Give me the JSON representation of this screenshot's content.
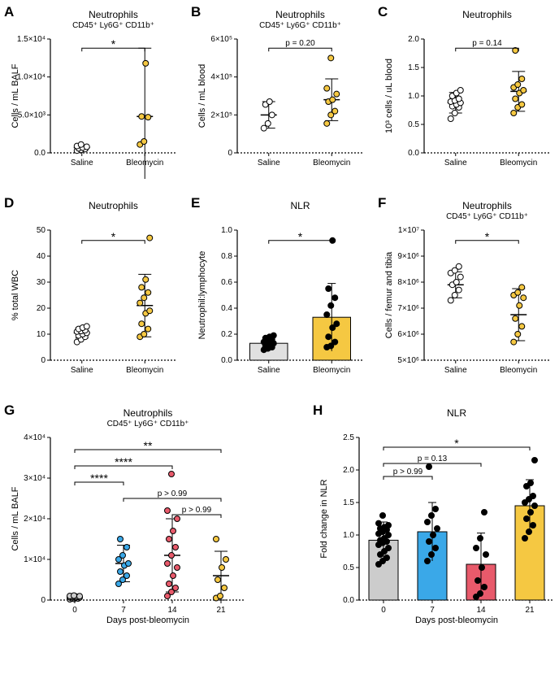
{
  "colors": {
    "saline_fill": "#ffffff",
    "saline_stroke": "#000000",
    "bleo_fill": "#f5c842",
    "bleo_stroke": "#000000",
    "day0_fill": "#cccccc",
    "day7_fill": "#3aa8e8",
    "day14_fill": "#e85a6b",
    "day21_fill": "#f5c842",
    "bar_saline": "#e0e0e0",
    "bar_bleo": "#f5c842",
    "bar_d0": "#cccccc",
    "bar_d7": "#3aa8e8",
    "bar_d14": "#e85a6b",
    "bar_d21": "#f5c842",
    "point_black": "#000000",
    "bg": "#ffffff"
  },
  "panelA": {
    "letter": "A",
    "title": "Neutrophils",
    "subtitle": "CD45⁺ Ly6G⁺ CD11b⁺",
    "ylabel": "Cells / mL BALF",
    "categories": [
      "Saline",
      "Bleomycin"
    ],
    "ylim": [
      0,
      15000
    ],
    "yticks": [
      0,
      5000,
      10000,
      15000
    ],
    "ytick_labels": [
      "0.0",
      "5.0×10³",
      "1.0×10⁴",
      "1.5×10⁴"
    ],
    "significance": "*",
    "data": {
      "Saline": [
        300,
        400,
        500,
        600,
        700,
        800,
        900,
        1100
      ],
      "Bleomycin": [
        1100,
        1500,
        4700,
        4800,
        11800
      ]
    },
    "err": {
      "Saline": [
        700,
        300
      ],
      "Bleomycin": [
        4800,
        9000
      ]
    }
  },
  "panelB": {
    "letter": "B",
    "title": "Neutrophils",
    "subtitle": "CD45⁺ Ly6G⁺ CD11b⁺",
    "ylabel": "Cells / mL blood",
    "categories": [
      "Saline",
      "Bleomycin"
    ],
    "ylim": [
      0,
      600000
    ],
    "yticks": [
      0,
      200000,
      400000,
      600000
    ],
    "ytick_labels": [
      "0",
      "2×10⁵",
      "4×10⁵",
      "6×10⁵"
    ],
    "annot": "p = 0.20",
    "data": {
      "Saline": [
        130000,
        155000,
        200000,
        255000,
        270000
      ],
      "Bleomycin": [
        155000,
        200000,
        220000,
        270000,
        280000,
        310000,
        340000,
        500000
      ]
    },
    "err": {
      "Saline": [
        200000,
        70000
      ],
      "Bleomycin": [
        280000,
        110000
      ]
    }
  },
  "panelC": {
    "letter": "C",
    "title": "Neutrophils",
    "subtitle": "",
    "ylabel": "10³ cells / uL blood",
    "categories": [
      "Saline",
      "Bleomycin"
    ],
    "ylim": [
      0,
      2.0
    ],
    "yticks": [
      0,
      0.5,
      1.0,
      1.5,
      2.0
    ],
    "ytick_labels": [
      "0.0",
      "0.5",
      "1.0",
      "1.5",
      "2.0"
    ],
    "annot": "p = 0.14",
    "data": {
      "Saline": [
        0.6,
        0.7,
        0.8,
        0.82,
        0.85,
        0.88,
        0.9,
        0.92,
        0.95,
        1.0,
        1.05,
        1.1
      ],
      "Bleomycin": [
        0.7,
        0.8,
        0.85,
        0.95,
        1.05,
        1.1,
        1.15,
        1.2,
        1.3,
        1.8
      ]
    },
    "err": {
      "Saline": [
        0.88,
        0.18
      ],
      "Bleomycin": [
        1.08,
        0.35
      ]
    }
  },
  "panelD": {
    "letter": "D",
    "title": "Neutrophils",
    "subtitle": "",
    "ylabel": "% total WBC",
    "categories": [
      "Saline",
      "Bleomycin"
    ],
    "ylim": [
      0,
      50
    ],
    "yticks": [
      0,
      10,
      20,
      30,
      40,
      50
    ],
    "ytick_labels": [
      "0",
      "10",
      "20",
      "30",
      "40",
      "50"
    ],
    "significance": "*",
    "data": {
      "Saline": [
        7,
        8,
        9,
        9.5,
        10,
        10.5,
        11,
        11.2,
        11.5,
        12,
        12.5,
        13
      ],
      "Bleomycin": [
        9,
        10,
        12,
        14,
        18,
        19,
        22,
        24,
        26,
        28,
        31,
        47
      ]
    },
    "err": {
      "Saline": [
        10.5,
        2
      ],
      "Bleomycin": [
        21,
        12
      ]
    }
  },
  "panelE": {
    "letter": "E",
    "title": "NLR",
    "subtitle": "",
    "ylabel": "Neutrophil:lymphocyte",
    "categories": [
      "Saline",
      "Bleomycin"
    ],
    "ylim": [
      0,
      1.0
    ],
    "yticks": [
      0,
      0.2,
      0.4,
      0.6,
      0.8,
      1.0
    ],
    "ytick_labels": [
      "0.0",
      "0.2",
      "0.4",
      "0.6",
      "0.8",
      "1.0"
    ],
    "significance": "*",
    "bar": true,
    "bar_colors": [
      "#e0e0e0",
      "#f5c842"
    ],
    "bar_heights": [
      0.13,
      0.33
    ],
    "bar_err": [
      0.04,
      0.26
    ],
    "data": {
      "Saline": [
        0.08,
        0.09,
        0.1,
        0.11,
        0.12,
        0.13,
        0.14,
        0.15,
        0.16,
        0.17,
        0.18,
        0.19
      ],
      "Bleomycin": [
        0.1,
        0.11,
        0.14,
        0.18,
        0.25,
        0.28,
        0.35,
        0.42,
        0.48,
        0.55,
        0.92
      ]
    }
  },
  "panelF": {
    "letter": "F",
    "title": "Neutrophils",
    "subtitle": "CD45⁺ Ly6G⁺ CD11b⁺",
    "ylabel": "Cells / femur and tibia",
    "categories": [
      "Saline",
      "Bleomycin"
    ],
    "ylim": [
      5000000,
      10000000
    ],
    "yticks": [
      5000000,
      6000000,
      7000000,
      8000000,
      9000000,
      10000000
    ],
    "ytick_labels": [
      "5×10⁶",
      "6×10⁶",
      "7×10⁶",
      "8×10⁶",
      "9×10⁶",
      "1×10⁷"
    ],
    "significance": "*",
    "data": {
      "Saline": [
        7300000,
        7500000,
        7700000,
        7900000,
        8000000,
        8200000,
        8350000,
        8450000,
        8600000
      ],
      "Bleomycin": [
        5700000,
        6000000,
        6300000,
        6600000,
        7100000,
        7400000,
        7500000,
        7600000,
        7800000
      ]
    },
    "err": {
      "Saline": [
        7900000,
        500000
      ],
      "Bleomycin": [
        6750000,
        1000000
      ]
    }
  },
  "panelG": {
    "letter": "G",
    "title": "Neutrophils",
    "subtitle": "CD45⁺ Ly6G⁺ CD11b⁺",
    "ylabel": "Cells / mL BALF",
    "xlabel": "Days post-bleomycin",
    "categories": [
      "0",
      "7",
      "14",
      "21"
    ],
    "colors": [
      "#cccccc",
      "#3aa8e8",
      "#e85a6b",
      "#f5c842"
    ],
    "ylim": [
      0,
      40000
    ],
    "yticks": [
      0,
      10000,
      20000,
      30000,
      40000
    ],
    "ytick_labels": [
      "0",
      "1×10⁴",
      "2×10⁴",
      "3×10⁴",
      "4×10⁴"
    ],
    "annots": [
      {
        "from": 0,
        "to": 3,
        "label": "**",
        "y": 37000
      },
      {
        "from": 0,
        "to": 2,
        "label": "****",
        "y": 33000
      },
      {
        "from": 0,
        "to": 1,
        "label": "****",
        "y": 29000
      },
      {
        "from": 1,
        "to": 3,
        "label": "p > 0.99",
        "y": 25000
      },
      {
        "from": 2,
        "to": 3,
        "label": "p > 0.99",
        "y": 21000
      }
    ],
    "data": {
      "0": [
        200,
        300,
        400,
        500,
        600,
        650,
        700,
        750,
        800,
        850,
        900,
        950,
        1000,
        1100
      ],
      "7": [
        4000,
        5000,
        6000,
        7000,
        8500,
        9000,
        10000,
        11000,
        13000,
        15000
      ],
      "14": [
        1000,
        2000,
        3000,
        4000,
        6000,
        8000,
        9000,
        11000,
        13000,
        15000,
        17000,
        20000,
        22000,
        31000
      ],
      "21": [
        500,
        1000,
        3000,
        5000,
        8000,
        10000,
        15000
      ]
    },
    "err": {
      "0": [
        700,
        400
      ],
      "7": [
        9000,
        4500
      ],
      "14": [
        11000,
        9000
      ],
      "21": [
        6000,
        6000
      ]
    }
  },
  "panelH": {
    "letter": "H",
    "title": "NLR",
    "subtitle": "",
    "ylabel": "Fold change in NLR",
    "xlabel": "Days post-bleomycin",
    "categories": [
      "0",
      "7",
      "14",
      "21"
    ],
    "colors": [
      "#cccccc",
      "#3aa8e8",
      "#e85a6b",
      "#f5c842"
    ],
    "ylim": [
      0,
      2.5
    ],
    "yticks": [
      0,
      0.5,
      1.0,
      1.5,
      2.0,
      2.5
    ],
    "ytick_labels": [
      "0.0",
      "0.5",
      "1.0",
      "1.5",
      "2.0",
      "2.5"
    ],
    "bar": true,
    "bar_heights": [
      0.92,
      1.05,
      0.55,
      1.45
    ],
    "bar_err": [
      0.28,
      0.45,
      0.48,
      0.4
    ],
    "annots": [
      {
        "from": 0,
        "to": 3,
        "label": "*",
        "y": 2.35
      },
      {
        "from": 0,
        "to": 2,
        "label": "p = 0.13",
        "y": 2.1
      },
      {
        "from": 0,
        "to": 1,
        "label": "p > 0.99",
        "y": 1.9
      }
    ],
    "data": {
      "0": [
        0.55,
        0.6,
        0.65,
        0.7,
        0.75,
        0.8,
        0.85,
        0.88,
        0.9,
        0.92,
        0.95,
        1.0,
        1.02,
        1.05,
        1.08,
        1.1,
        1.12,
        1.15,
        1.18,
        1.3
      ],
      "7": [
        0.6,
        0.7,
        0.8,
        0.9,
        1.0,
        1.1,
        1.2,
        1.3,
        1.4,
        2.05
      ],
      "14": [
        0.05,
        0.1,
        0.2,
        0.3,
        0.5,
        0.7,
        0.8,
        0.95,
        1.35
      ],
      "21": [
        0.95,
        1.05,
        1.15,
        1.25,
        1.35,
        1.45,
        1.5,
        1.55,
        1.6,
        1.75,
        1.8,
        2.15
      ]
    }
  }
}
